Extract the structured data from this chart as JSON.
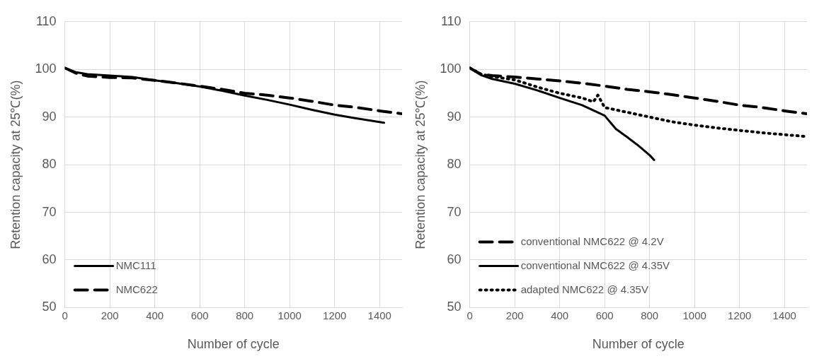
{
  "chart_data": [
    {
      "type": "line",
      "xlabel": "Number of cycle",
      "ylabel": "Retention capacity at 25℃(%)",
      "xlim": [
        0,
        1500
      ],
      "xticks": [
        0,
        200,
        400,
        600,
        800,
        1000,
        1200,
        1400
      ],
      "ylim": [
        50,
        110
      ],
      "yticks": [
        50,
        60,
        70,
        80,
        90,
        100,
        110
      ],
      "grid": true,
      "legend": "bottom left",
      "marker": "none",
      "series": [
        {
          "name": "NMC111",
          "color": "#000000",
          "line_style": "solid",
          "x": [
            0,
            50,
            100,
            200,
            300,
            400,
            500,
            600,
            700,
            800,
            900,
            1000,
            1100,
            1200,
            1300,
            1420
          ],
          "values": [
            100.3,
            99.4,
            99.0,
            98.7,
            98.4,
            97.7,
            97.1,
            96.4,
            95.5,
            94.5,
            93.6,
            92.6,
            91.5,
            90.5,
            89.7,
            88.8
          ]
        },
        {
          "name": "NMC622",
          "color": "#000000",
          "line_style": "dashed",
          "x": [
            0,
            50,
            100,
            200,
            300,
            400,
            500,
            600,
            700,
            800,
            900,
            1000,
            1100,
            1200,
            1300,
            1400,
            1500
          ],
          "values": [
            100.3,
            99.2,
            98.6,
            98.3,
            98.2,
            97.7,
            97.1,
            96.5,
            95.8,
            95.0,
            94.6,
            94.0,
            93.3,
            92.5,
            92.0,
            91.3,
            90.7
          ]
        }
      ]
    },
    {
      "type": "line",
      "xlabel": "Number of cycle",
      "ylabel": "Retention capacity at 25℃(%)",
      "xlim": [
        0,
        1500
      ],
      "xticks": [
        0,
        200,
        400,
        600,
        800,
        1000,
        1200,
        1400
      ],
      "ylim": [
        50,
        110
      ],
      "yticks": [
        50,
        60,
        70,
        80,
        90,
        100,
        110
      ],
      "grid": true,
      "legend": "bottom left",
      "marker": "none",
      "series": [
        {
          "name": "conventional NMC622 @ 4.2V",
          "color": "#000000",
          "line_style": "dashed",
          "x": [
            0,
            50,
            100,
            200,
            300,
            400,
            500,
            600,
            700,
            800,
            900,
            1000,
            1100,
            1200,
            1300,
            1400,
            1500
          ],
          "values": [
            100.3,
            99.0,
            98.7,
            98.4,
            98.0,
            97.6,
            97.1,
            96.5,
            95.8,
            95.3,
            94.7,
            94.0,
            93.3,
            92.5,
            92.0,
            91.3,
            90.7
          ]
        },
        {
          "name": "conventional NMC622 @ 4.35V",
          "color": "#000000",
          "line_style": "solid",
          "x": [
            0,
            50,
            100,
            200,
            300,
            400,
            500,
            600,
            650,
            700,
            750,
            800,
            820
          ],
          "values": [
            100.3,
            98.8,
            98.0,
            97.0,
            95.6,
            94.0,
            92.5,
            90.3,
            87.5,
            85.8,
            84.0,
            82.0,
            81.0
          ]
        },
        {
          "name": "adapted NMC622 @ 4.35V",
          "color": "#000000",
          "line_style": "dotted",
          "x": [
            0,
            50,
            100,
            200,
            300,
            400,
            500,
            550,
            570,
            600,
            700,
            800,
            900,
            1000,
            1100,
            1200,
            1300,
            1400,
            1500
          ],
          "values": [
            100.3,
            99.0,
            98.5,
            97.8,
            96.3,
            95.0,
            94.0,
            93.2,
            94.6,
            92.0,
            91.0,
            90.0,
            89.0,
            88.3,
            87.7,
            87.2,
            86.7,
            86.3,
            85.9
          ]
        }
      ]
    }
  ]
}
